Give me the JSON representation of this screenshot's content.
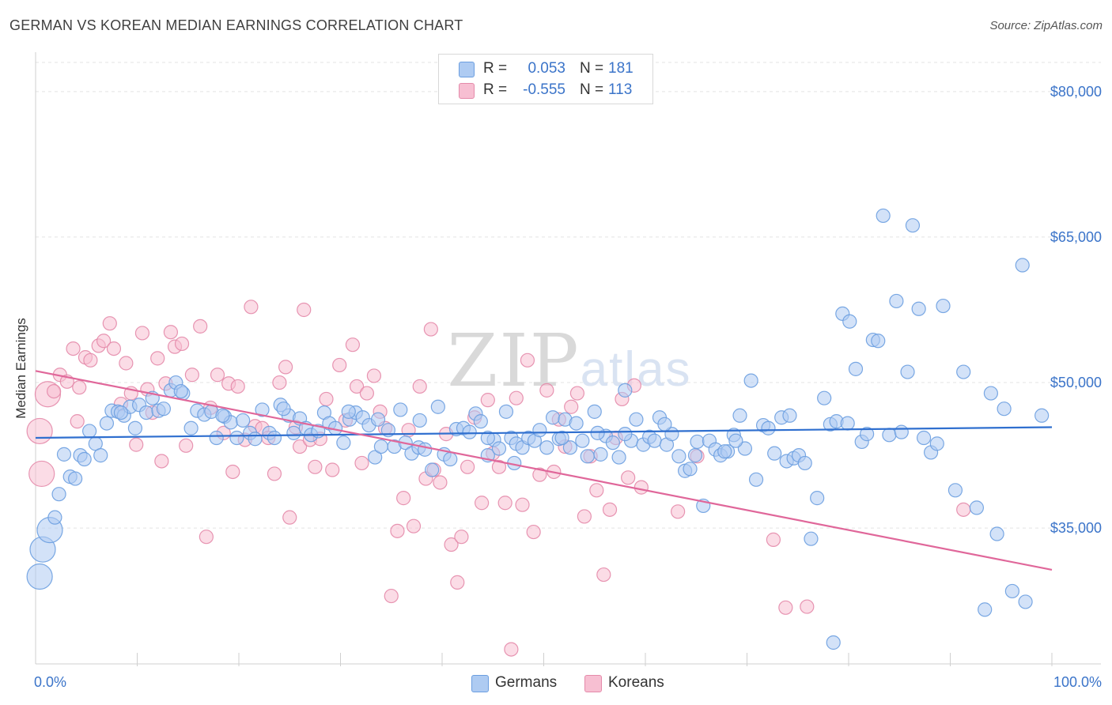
{
  "header": {
    "title": "GERMAN VS KOREAN MEDIAN EARNINGS CORRELATION CHART",
    "source": "Source: ZipAtlas.com"
  },
  "watermark": "ZIPatlas",
  "legend_top": {
    "rows": [
      {
        "r_label": "R =",
        "r_value": "0.053",
        "n_label": "N =",
        "n_value": "181",
        "color": "#aecbf2",
        "stroke": "#6b9ee0"
      },
      {
        "r_label": "R =",
        "r_value": "-0.555",
        "n_label": "N =",
        "n_value": "113",
        "color": "#f7bfd2",
        "stroke": "#e48aaa"
      }
    ]
  },
  "legend_bottom": {
    "items": [
      {
        "label": "Germans",
        "color": "#aecbf2",
        "stroke": "#6b9ee0"
      },
      {
        "label": "Koreans",
        "color": "#f7bfd2",
        "stroke": "#e48aaa"
      }
    ]
  },
  "chart_data": {
    "type": "scatter",
    "title": "GERMAN VS KOREAN MEDIAN EARNINGS CORRELATION CHART",
    "xlabel": "",
    "ylabel": "Median Earnings",
    "xlim": [
      0,
      100
    ],
    "ylim": [
      21000,
      83000
    ],
    "x_tick_labels": [
      "0.0%",
      "100.0%"
    ],
    "y_ticks": [
      35000,
      50000,
      65000,
      80000
    ],
    "y_tick_labels": [
      "$35,000",
      "$50,000",
      "$65,000",
      "$80,000"
    ],
    "grid": "horizontal-dashed",
    "series": [
      {
        "name": "Germans",
        "color": "#6b9ee0",
        "fill": "#aecbf2",
        "trend": [
          [
            0,
            44300
          ],
          [
            100,
            45400
          ]
        ],
        "points": [
          [
            0.4,
            30000
          ],
          [
            0.7,
            32800
          ],
          [
            1.4,
            34800
          ],
          [
            1.9,
            36100
          ],
          [
            2.3,
            38500
          ],
          [
            2.8,
            42600
          ],
          [
            3.4,
            40300
          ],
          [
            3.9,
            40100
          ],
          [
            4.4,
            42500
          ],
          [
            4.8,
            42100
          ],
          [
            5.3,
            45000
          ],
          [
            5.9,
            43700
          ],
          [
            6.4,
            42500
          ],
          [
            7.0,
            45800
          ],
          [
            7.5,
            47100
          ],
          [
            8.1,
            47000
          ],
          [
            8.7,
            46600
          ],
          [
            9.3,
            47500
          ],
          [
            9.8,
            45300
          ],
          [
            10.2,
            47700
          ],
          [
            10.9,
            46900
          ],
          [
            11.5,
            48400
          ],
          [
            12.1,
            47100
          ],
          [
            12.6,
            47300
          ],
          [
            13.3,
            49200
          ],
          [
            13.8,
            50000
          ],
          [
            14.5,
            48900
          ],
          [
            15.3,
            45300
          ],
          [
            15.9,
            47100
          ],
          [
            16.6,
            46700
          ],
          [
            17.3,
            47000
          ],
          [
            17.8,
            44300
          ],
          [
            18.6,
            46500
          ],
          [
            19.2,
            45900
          ],
          [
            19.8,
            44300
          ],
          [
            20.4,
            46100
          ],
          [
            21.1,
            44800
          ],
          [
            21.6,
            44200
          ],
          [
            22.3,
            47200
          ],
          [
            23.0,
            44800
          ],
          [
            23.5,
            44300
          ],
          [
            24.1,
            47700
          ],
          [
            24.9,
            46600
          ],
          [
            25.4,
            44800
          ],
          [
            26.0,
            46300
          ],
          [
            26.6,
            45300
          ],
          [
            27.1,
            44600
          ],
          [
            27.8,
            45000
          ],
          [
            28.4,
            46900
          ],
          [
            28.9,
            45800
          ],
          [
            29.5,
            45300
          ],
          [
            30.3,
            43800
          ],
          [
            30.9,
            46200
          ],
          [
            31.5,
            46900
          ],
          [
            32.2,
            46400
          ],
          [
            32.8,
            45600
          ],
          [
            33.4,
            42300
          ],
          [
            34.0,
            43400
          ],
          [
            34.7,
            45100
          ],
          [
            35.3,
            43400
          ],
          [
            35.9,
            47200
          ],
          [
            36.4,
            43800
          ],
          [
            37.0,
            42700
          ],
          [
            37.7,
            43300
          ],
          [
            38.3,
            43100
          ],
          [
            39.0,
            41000
          ],
          [
            39.6,
            47500
          ],
          [
            40.2,
            42600
          ],
          [
            40.8,
            42100
          ],
          [
            41.4,
            45200
          ],
          [
            42.1,
            45300
          ],
          [
            42.7,
            44900
          ],
          [
            43.3,
            46800
          ],
          [
            43.8,
            46000
          ],
          [
            44.5,
            42500
          ],
          [
            45.1,
            44100
          ],
          [
            45.6,
            43200
          ],
          [
            46.3,
            47000
          ],
          [
            46.8,
            44300
          ],
          [
            47.3,
            43700
          ],
          [
            47.9,
            43300
          ],
          [
            48.5,
            44300
          ],
          [
            49.1,
            44000
          ],
          [
            49.6,
            45100
          ],
          [
            50.3,
            43300
          ],
          [
            50.9,
            46400
          ],
          [
            51.5,
            44200
          ],
          [
            52.1,
            46200
          ],
          [
            52.6,
            43300
          ],
          [
            53.2,
            45800
          ],
          [
            53.8,
            44000
          ],
          [
            54.3,
            42400
          ],
          [
            55.0,
            47000
          ],
          [
            55.6,
            42600
          ],
          [
            56.1,
            44500
          ],
          [
            56.8,
            43800
          ],
          [
            57.4,
            42300
          ],
          [
            58.0,
            49200
          ],
          [
            58.6,
            44000
          ],
          [
            59.1,
            46200
          ],
          [
            59.8,
            43600
          ],
          [
            60.4,
            44400
          ],
          [
            60.9,
            44000
          ],
          [
            61.4,
            46400
          ],
          [
            62.1,
            43600
          ],
          [
            62.6,
            44700
          ],
          [
            63.3,
            42400
          ],
          [
            63.9,
            40900
          ],
          [
            64.4,
            41100
          ],
          [
            65.1,
            43900
          ],
          [
            65.7,
            37300
          ],
          [
            66.3,
            44000
          ],
          [
            66.9,
            43100
          ],
          [
            67.4,
            42500
          ],
          [
            68.1,
            42900
          ],
          [
            68.7,
            44600
          ],
          [
            69.3,
            46600
          ],
          [
            69.8,
            43200
          ],
          [
            70.4,
            50200
          ],
          [
            70.9,
            40000
          ],
          [
            71.6,
            45600
          ],
          [
            72.1,
            45300
          ],
          [
            72.7,
            42700
          ],
          [
            73.4,
            46400
          ],
          [
            73.9,
            41900
          ],
          [
            74.6,
            42200
          ],
          [
            75.1,
            42500
          ],
          [
            75.7,
            41700
          ],
          [
            76.3,
            33900
          ],
          [
            76.9,
            38100
          ],
          [
            77.6,
            48400
          ],
          [
            78.2,
            45700
          ],
          [
            78.8,
            46000
          ],
          [
            79.4,
            57100
          ],
          [
            80.1,
            56300
          ],
          [
            80.7,
            51400
          ],
          [
            81.3,
            43900
          ],
          [
            81.8,
            44700
          ],
          [
            82.4,
            54400
          ],
          [
            82.9,
            54300
          ],
          [
            83.4,
            67200
          ],
          [
            84.0,
            44600
          ],
          [
            84.7,
            58400
          ],
          [
            85.2,
            44900
          ],
          [
            85.8,
            51100
          ],
          [
            86.3,
            66200
          ],
          [
            86.9,
            57600
          ],
          [
            87.4,
            44300
          ],
          [
            88.1,
            42800
          ],
          [
            88.7,
            43700
          ],
          [
            89.3,
            57900
          ],
          [
            90.5,
            38900
          ],
          [
            91.3,
            51100
          ],
          [
            92.6,
            37100
          ],
          [
            93.4,
            26600
          ],
          [
            94.0,
            48900
          ],
          [
            94.6,
            34400
          ],
          [
            95.3,
            47300
          ],
          [
            96.1,
            28500
          ],
          [
            97.1,
            62100
          ],
          [
            97.4,
            27400
          ],
          [
            99.0,
            46600
          ],
          [
            78.5,
            23200
          ],
          [
            47.1,
            41700
          ],
          [
            8.4,
            46900
          ],
          [
            14.3,
            49100
          ],
          [
            18.4,
            46600
          ],
          [
            24.4,
            47300
          ],
          [
            30.8,
            47000
          ],
          [
            37.8,
            46100
          ],
          [
            44.5,
            44300
          ],
          [
            51.8,
            44300
          ],
          [
            58.0,
            44700
          ],
          [
            64.9,
            42500
          ],
          [
            68.9,
            44000
          ],
          [
            74.2,
            46600
          ],
          [
            79.9,
            45800
          ],
          [
            55.3,
            44800
          ],
          [
            61.9,
            45700
          ],
          [
            67.8,
            42900
          ],
          [
            33.7,
            46200
          ]
        ]
      },
      {
        "name": "Koreans",
        "color": "#e48aaa",
        "fill": "#f7bfd2",
        "trend": [
          [
            0,
            51200
          ],
          [
            100,
            30700
          ]
        ],
        "points": [
          [
            0.4,
            45000
          ],
          [
            0.6,
            40600
          ],
          [
            1.2,
            48800
          ],
          [
            1.8,
            49100
          ],
          [
            2.4,
            50800
          ],
          [
            3.1,
            50100
          ],
          [
            3.7,
            53500
          ],
          [
            4.1,
            46000
          ],
          [
            4.3,
            49500
          ],
          [
            4.9,
            52600
          ],
          [
            5.4,
            52300
          ],
          [
            6.2,
            53800
          ],
          [
            6.7,
            54300
          ],
          [
            7.3,
            56100
          ],
          [
            7.7,
            53500
          ],
          [
            8.4,
            47800
          ],
          [
            8.9,
            52000
          ],
          [
            9.4,
            48900
          ],
          [
            9.9,
            43600
          ],
          [
            10.5,
            55100
          ],
          [
            11.0,
            49300
          ],
          [
            11.5,
            46900
          ],
          [
            12.0,
            52500
          ],
          [
            12.4,
            41900
          ],
          [
            12.8,
            49900
          ],
          [
            13.3,
            55200
          ],
          [
            13.7,
            53700
          ],
          [
            14.4,
            54000
          ],
          [
            14.8,
            43500
          ],
          [
            15.4,
            50800
          ],
          [
            16.2,
            55800
          ],
          [
            16.8,
            34100
          ],
          [
            17.2,
            47400
          ],
          [
            17.9,
            50800
          ],
          [
            18.5,
            44800
          ],
          [
            19.0,
            49900
          ],
          [
            19.4,
            40800
          ],
          [
            19.9,
            49600
          ],
          [
            20.6,
            44100
          ],
          [
            21.2,
            57800
          ],
          [
            21.6,
            45500
          ],
          [
            22.3,
            45300
          ],
          [
            22.9,
            44300
          ],
          [
            23.5,
            40600
          ],
          [
            24.0,
            50000
          ],
          [
            24.6,
            51600
          ],
          [
            25.0,
            36100
          ],
          [
            25.6,
            45400
          ],
          [
            26.0,
            43400
          ],
          [
            26.4,
            57500
          ],
          [
            27.0,
            44100
          ],
          [
            27.5,
            41300
          ],
          [
            28.0,
            44200
          ],
          [
            28.6,
            48300
          ],
          [
            29.2,
            41000
          ],
          [
            29.9,
            51800
          ],
          [
            30.5,
            46100
          ],
          [
            31.2,
            53900
          ],
          [
            31.6,
            49600
          ],
          [
            32.1,
            41700
          ],
          [
            32.6,
            48900
          ],
          [
            33.3,
            50700
          ],
          [
            33.9,
            47000
          ],
          [
            34.4,
            45300
          ],
          [
            35.0,
            28000
          ],
          [
            35.6,
            34700
          ],
          [
            36.2,
            38100
          ],
          [
            36.7,
            45100
          ],
          [
            37.2,
            35200
          ],
          [
            37.8,
            49600
          ],
          [
            38.4,
            40100
          ],
          [
            38.9,
            55500
          ],
          [
            39.2,
            41000
          ],
          [
            39.8,
            39700
          ],
          [
            40.4,
            44700
          ],
          [
            40.9,
            33300
          ],
          [
            41.5,
            29400
          ],
          [
            41.9,
            34100
          ],
          [
            42.5,
            41300
          ],
          [
            43.2,
            46400
          ],
          [
            43.9,
            37600
          ],
          [
            44.5,
            48200
          ],
          [
            45.0,
            42700
          ],
          [
            45.6,
            41300
          ],
          [
            46.2,
            37600
          ],
          [
            46.8,
            22500
          ],
          [
            47.3,
            48400
          ],
          [
            47.9,
            37400
          ],
          [
            48.4,
            52300
          ],
          [
            49.0,
            34600
          ],
          [
            49.6,
            40500
          ],
          [
            50.3,
            49200
          ],
          [
            51.0,
            40800
          ],
          [
            51.5,
            46200
          ],
          [
            52.1,
            43400
          ],
          [
            52.7,
            47500
          ],
          [
            53.3,
            48900
          ],
          [
            54.0,
            36200
          ],
          [
            54.6,
            42400
          ],
          [
            55.2,
            38900
          ],
          [
            55.9,
            30200
          ],
          [
            56.5,
            36900
          ],
          [
            57.1,
            44300
          ],
          [
            57.7,
            48300
          ],
          [
            58.3,
            40200
          ],
          [
            58.9,
            49700
          ],
          [
            59.6,
            39200
          ],
          [
            63.2,
            36700
          ],
          [
            65.1,
            42400
          ],
          [
            72.6,
            33800
          ],
          [
            73.8,
            26800
          ],
          [
            75.9,
            26900
          ],
          [
            91.3,
            36900
          ]
        ]
      }
    ]
  }
}
